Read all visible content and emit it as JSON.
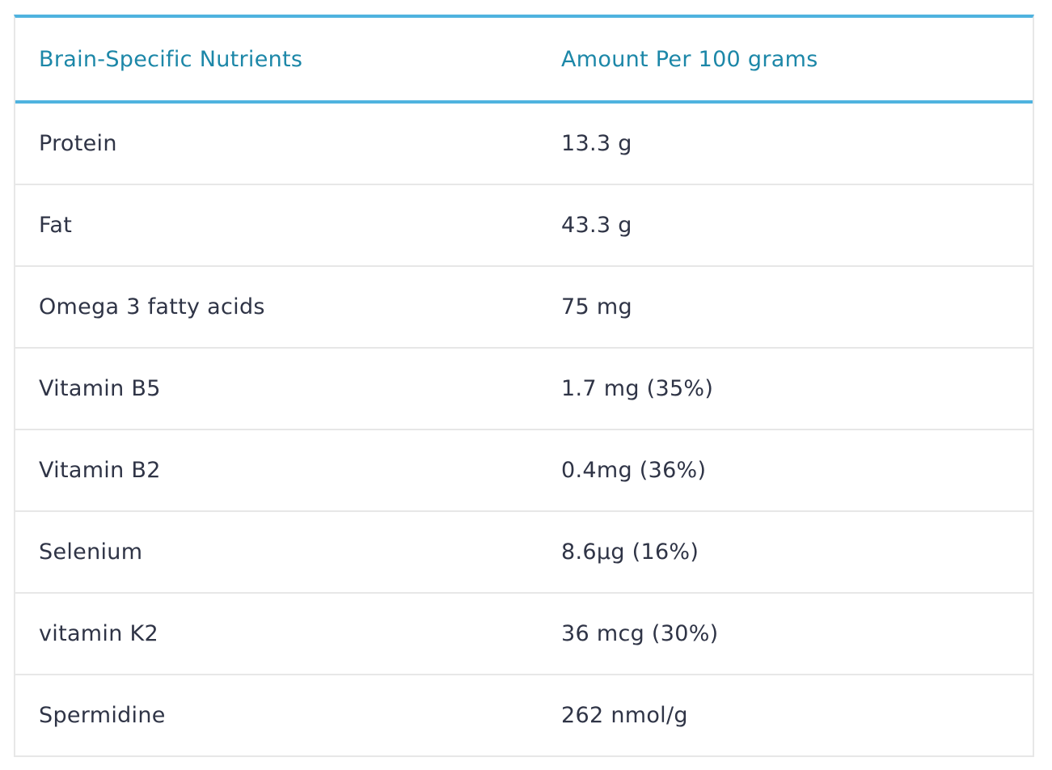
{
  "table": {
    "headers": {
      "nutrient": "Brain-Specific Nutrients",
      "amount": "Amount Per 100 grams"
    },
    "rows": [
      {
        "nutrient": "Protein",
        "amount": "13.3 g"
      },
      {
        "nutrient": "Fat",
        "amount": "43.3 g"
      },
      {
        "nutrient": "Omega 3 fatty acids",
        "amount": "75 mg"
      },
      {
        "nutrient": "Vitamin B5",
        "amount": "1.7 mg (35%)"
      },
      {
        "nutrient": "Vitamin B2",
        "amount": "0.4mg (36%)"
      },
      {
        "nutrient": "Selenium",
        "amount": "8.6μg (16%)"
      },
      {
        "nutrient": "vitamin K2",
        "amount": "36 mcg (30%)"
      },
      {
        "nutrient": "Spermidine",
        "amount": "262 nmol/g"
      }
    ]
  },
  "colors": {
    "header_text": "#1c87a8",
    "accent_border": "#4fb3df",
    "body_text": "#2f3446",
    "row_border": "#e7e7e7"
  }
}
